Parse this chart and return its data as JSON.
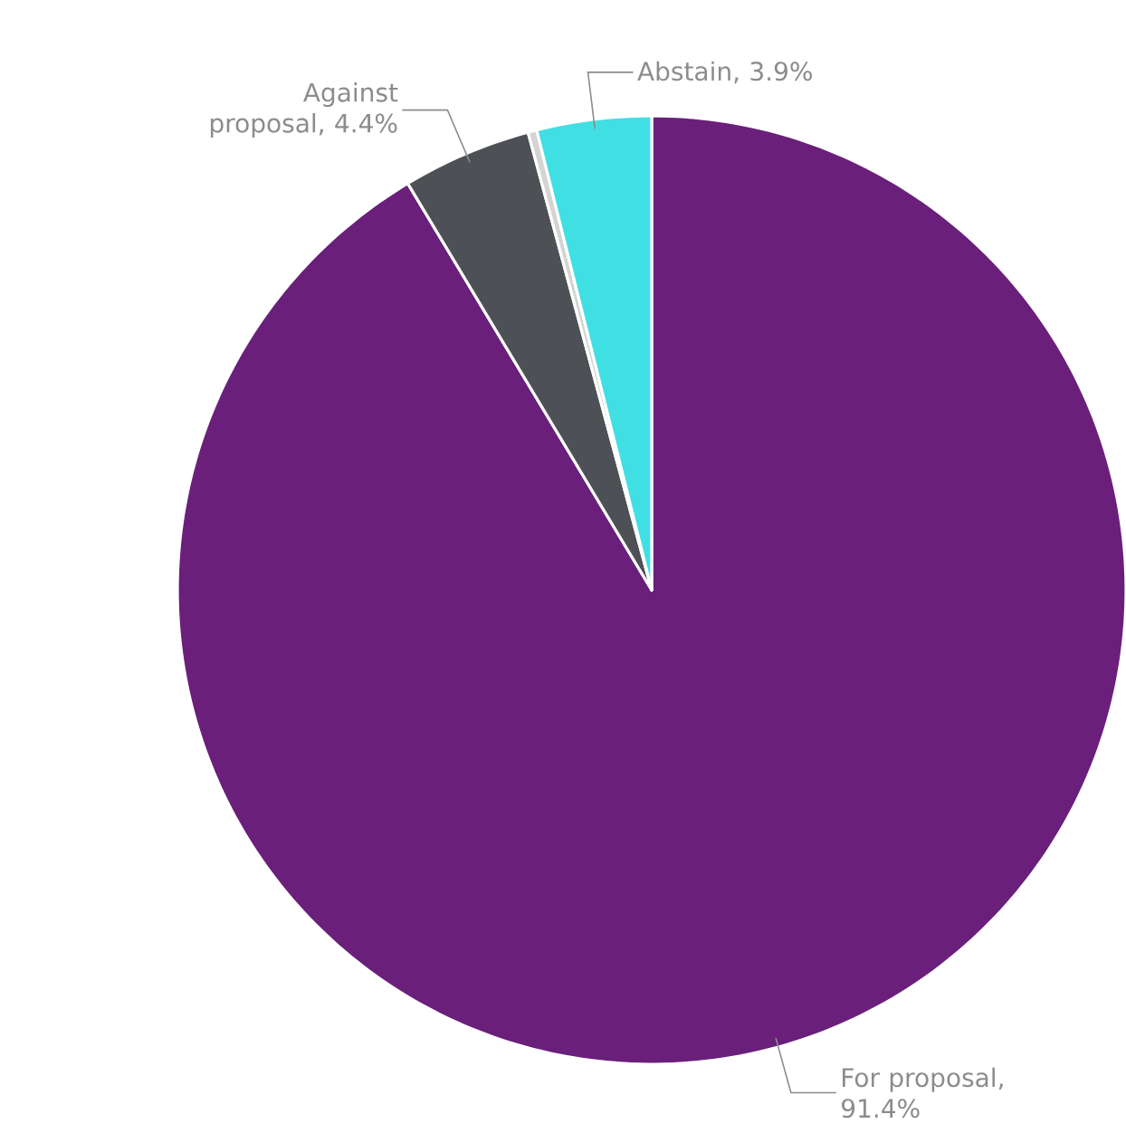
{
  "chart_data": {
    "type": "pie",
    "categories": [
      "For proposal, 91.4%",
      "Against proposal, 4.4%",
      null,
      "Abstain, 3.9%"
    ],
    "values": [
      91.4,
      4.4,
      0.3,
      3.9
    ],
    "colors": [
      "#6a1f7a",
      "#4d5054",
      "#d4d4d4",
      "#40dfe3"
    ]
  }
}
